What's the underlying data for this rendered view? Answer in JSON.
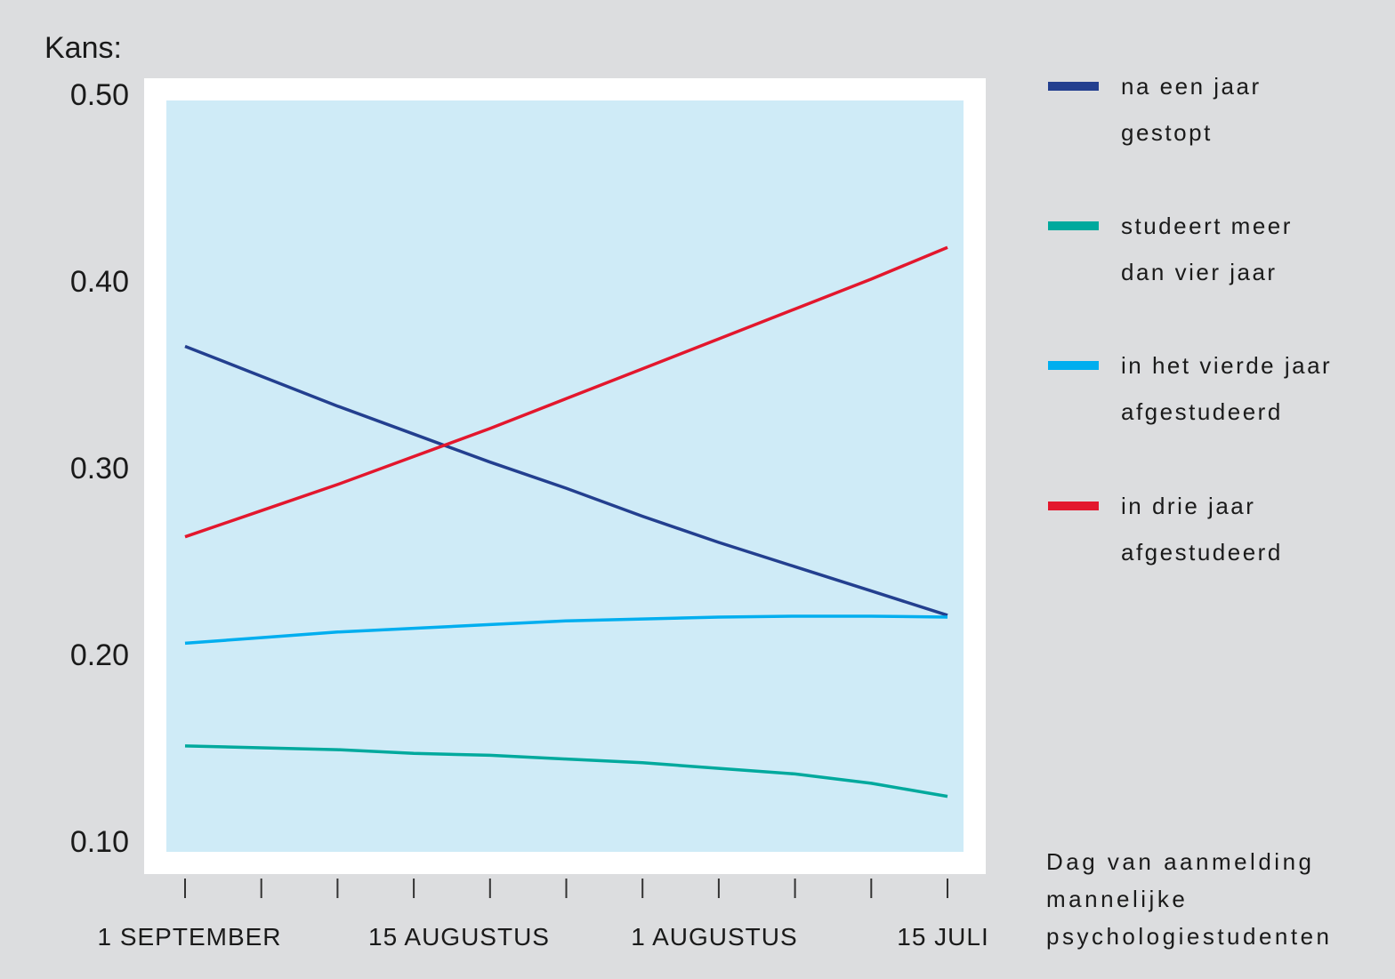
{
  "chart_data": {
    "type": "line",
    "ylabel": "Kans:",
    "ylim": [
      0.1,
      0.5
    ],
    "yticks": [
      "0.50",
      "0.40",
      "0.30",
      "0.20",
      "0.10"
    ],
    "ytick_values": [
      0.5,
      0.4,
      0.3,
      0.2,
      0.1
    ],
    "xtick_count": 11,
    "xticklabels": [
      "1 SEPTEMBER",
      "15 AUGUSTUS",
      "1 AUGUSTUS",
      "15 JULI"
    ],
    "grid": false,
    "legend_position": "right",
    "background_color": "#dcdddf",
    "plot_color": "#cfebf7",
    "series": [
      {
        "name": "na een jaar gestopt",
        "legend_lines": [
          "na een jaar",
          "gestopt"
        ],
        "color": "#233f8f",
        "values": [
          0.365,
          0.349,
          0.333,
          0.318,
          0.303,
          0.289,
          0.274,
          0.26,
          0.247,
          0.234,
          0.221
        ]
      },
      {
        "name": "studeert meer dan vier jaar",
        "legend_lines": [
          "studeert meer",
          "dan vier jaar"
        ],
        "color": "#00a99d",
        "values": [
          0.151,
          0.15,
          0.149,
          0.147,
          0.146,
          0.144,
          0.142,
          0.139,
          0.136,
          0.131,
          0.124
        ]
      },
      {
        "name": "in het vierde jaar afgestudeerd",
        "legend_lines": [
          "in het vierde jaar",
          "afgestudeerd"
        ],
        "color": "#00aeef",
        "values": [
          0.206,
          0.209,
          0.212,
          0.214,
          0.216,
          0.218,
          0.219,
          0.22,
          0.2205,
          0.2205,
          0.22
        ]
      },
      {
        "name": "in drie jaar afgestudeerd",
        "legend_lines": [
          "in drie jaar",
          "afgestudeerd"
        ],
        "color": "#e3172d",
        "values": [
          0.263,
          0.277,
          0.291,
          0.306,
          0.321,
          0.337,
          0.353,
          0.369,
          0.385,
          0.401,
          0.418
        ]
      }
    ],
    "note": [
      "Dag van aanmelding",
      "mannelijke",
      "psychologiestudenten"
    ]
  }
}
